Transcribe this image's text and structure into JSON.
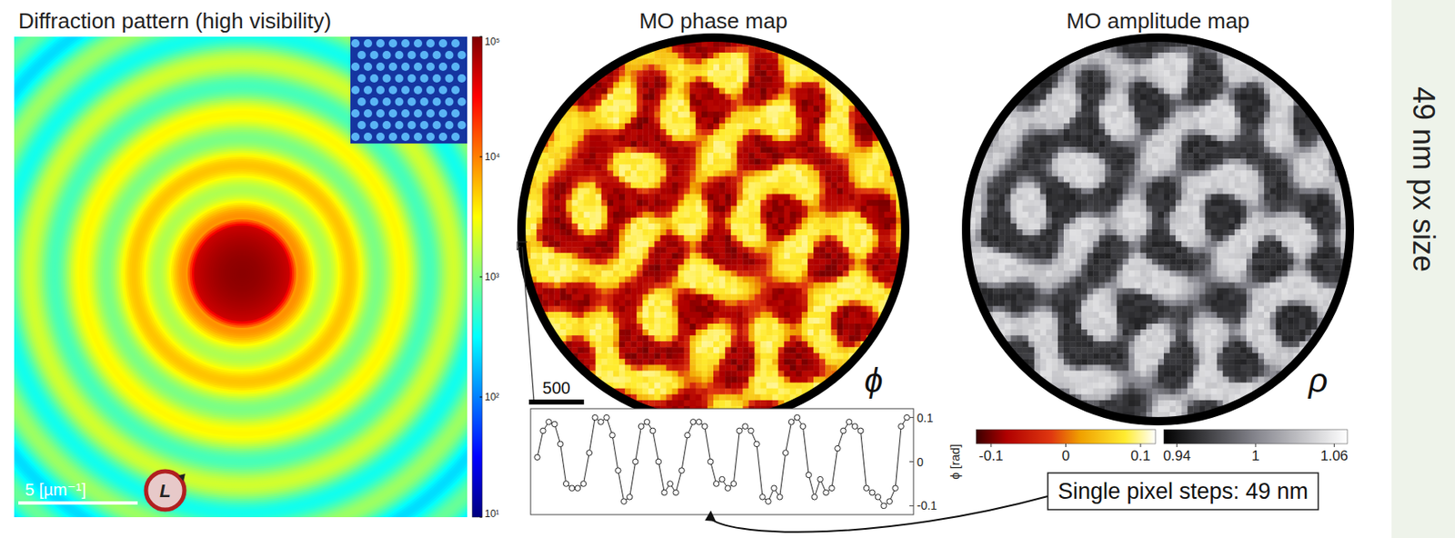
{
  "side_label": "49 nm px size",
  "diffraction": {
    "title": "Diffraction pattern (high visibility)",
    "scale_bar": "5 [µm⁻¹]",
    "polarization": "L",
    "colorbar": {
      "log": true,
      "lim": [
        10,
        100000
      ],
      "ticks": [
        {
          "value": 10,
          "label": "10¹"
        },
        {
          "value": 100,
          "label": "10²"
        },
        {
          "value": 1000,
          "label": "10³"
        },
        {
          "value": 10000,
          "label": "10⁴"
        },
        {
          "value": 100000,
          "label": "10⁵"
        }
      ]
    }
  },
  "phase_map": {
    "title": "MO phase map",
    "symbol": "ϕ",
    "scale_bar": "500",
    "colorbar": {
      "lim": [
        -0.12,
        0.12
      ],
      "ticks": [
        -0.1,
        0,
        0.1
      ]
    }
  },
  "amplitude_map": {
    "title": "MO amplitude map",
    "symbol": "ρ",
    "colorbar": {
      "lim": [
        0.93,
        1.07
      ],
      "ticks": [
        0.94,
        1,
        1.06
      ]
    }
  },
  "chart_data": {
    "type": "line",
    "y_label": "ϕ [rad]",
    "values": [
      0.01,
      0.07,
      0.09,
      0.085,
      0.04,
      -0.05,
      -0.06,
      -0.06,
      -0.05,
      0.02,
      0.1,
      0.09,
      0.1,
      0.06,
      -0.02,
      -0.09,
      -0.08,
      0.0,
      0.08,
      0.09,
      0.07,
      0.0,
      -0.07,
      -0.05,
      -0.07,
      -0.02,
      0.06,
      0.09,
      0.09,
      0.08,
      0.0,
      -0.05,
      -0.04,
      -0.06,
      -0.05,
      0.07,
      0.08,
      0.07,
      0.04,
      -0.08,
      -0.09,
      -0.06,
      -0.08,
      0.02,
      0.09,
      0.1,
      0.08,
      -0.03,
      -0.08,
      -0.04,
      -0.07,
      -0.06,
      0.03,
      0.07,
      0.09,
      0.08,
      0.07,
      -0.06,
      -0.07,
      -0.08,
      -0.1,
      -0.09,
      -0.06,
      0.08,
      0.1
    ],
    "ylim": [
      -0.12,
      0.12
    ],
    "yticks": [
      -0.1,
      0,
      0.1
    ],
    "color": "#222222",
    "marker": "circle",
    "tick_labels": "y"
  },
  "callout": "Single pixel steps: 49 nm"
}
